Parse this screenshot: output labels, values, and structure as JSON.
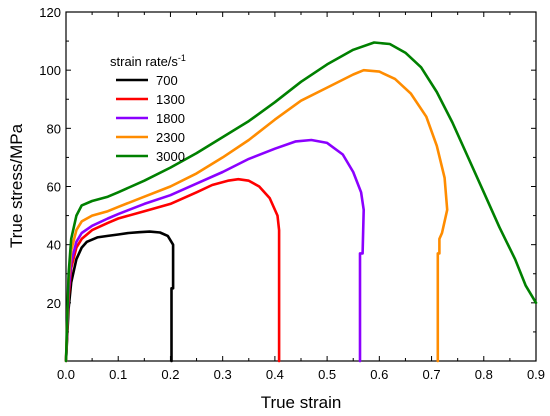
{
  "chart_data": {
    "type": "line",
    "xlabel": "True strain",
    "ylabel": "True stress/MPa",
    "xlim": [
      0.0,
      0.9
    ],
    "ylim": [
      0,
      120
    ],
    "xticks": [
      0.0,
      0.1,
      0.2,
      0.3,
      0.4,
      0.5,
      0.6,
      0.7,
      0.8,
      0.9
    ],
    "xtick_labels": [
      "0.0",
      "0.1",
      "0.2",
      "0.3",
      "0.4",
      "0.5",
      "0.6",
      "0.7",
      "0.8",
      "0.9"
    ],
    "yticks": [
      20,
      40,
      60,
      80,
      100,
      120
    ],
    "ytick_labels": [
      "20",
      "40",
      "60",
      "80",
      "100",
      "120"
    ],
    "grid": false,
    "legend": {
      "title": "strain rate/s",
      "title_superscript": "-1",
      "placement": "top-left"
    },
    "series": [
      {
        "name": "700",
        "color": "#000000",
        "points": [
          [
            0.0,
            0
          ],
          [
            0.005,
            18
          ],
          [
            0.01,
            27
          ],
          [
            0.02,
            35
          ],
          [
            0.03,
            39
          ],
          [
            0.04,
            41
          ],
          [
            0.06,
            42.5
          ],
          [
            0.08,
            43
          ],
          [
            0.1,
            43.5
          ],
          [
            0.12,
            44
          ],
          [
            0.14,
            44.3
          ],
          [
            0.16,
            44.5
          ],
          [
            0.18,
            44.2
          ],
          [
            0.195,
            43
          ],
          [
            0.205,
            40
          ],
          [
            0.205,
            25
          ],
          [
            0.202,
            25
          ],
          [
            0.202,
            0
          ]
        ]
      },
      {
        "name": "1300",
        "color": "#ff0000",
        "points": [
          [
            0.0,
            0
          ],
          [
            0.005,
            22
          ],
          [
            0.01,
            32
          ],
          [
            0.02,
            39
          ],
          [
            0.03,
            42
          ],
          [
            0.05,
            45
          ],
          [
            0.08,
            47.5
          ],
          [
            0.1,
            49
          ],
          [
            0.15,
            51.5
          ],
          [
            0.2,
            54
          ],
          [
            0.25,
            58
          ],
          [
            0.28,
            60.5
          ],
          [
            0.31,
            62
          ],
          [
            0.33,
            62.5
          ],
          [
            0.35,
            62
          ],
          [
            0.37,
            60
          ],
          [
            0.39,
            56
          ],
          [
            0.405,
            50
          ],
          [
            0.408,
            45
          ],
          [
            0.408,
            0
          ]
        ]
      },
      {
        "name": "1800",
        "color": "#8b00ff",
        "points": [
          [
            0.0,
            0
          ],
          [
            0.005,
            24
          ],
          [
            0.01,
            34
          ],
          [
            0.02,
            41
          ],
          [
            0.03,
            44
          ],
          [
            0.05,
            46.5
          ],
          [
            0.08,
            49
          ],
          [
            0.1,
            50.5
          ],
          [
            0.15,
            54
          ],
          [
            0.2,
            57
          ],
          [
            0.25,
            61
          ],
          [
            0.3,
            65
          ],
          [
            0.35,
            69.5
          ],
          [
            0.4,
            73
          ],
          [
            0.44,
            75.5
          ],
          [
            0.47,
            76
          ],
          [
            0.5,
            75
          ],
          [
            0.53,
            71
          ],
          [
            0.55,
            65
          ],
          [
            0.565,
            58
          ],
          [
            0.57,
            52
          ],
          [
            0.568,
            37
          ],
          [
            0.563,
            37
          ],
          [
            0.563,
            0
          ]
        ]
      },
      {
        "name": "2300",
        "color": "#ff8c00",
        "points": [
          [
            0.0,
            0
          ],
          [
            0.005,
            28
          ],
          [
            0.01,
            38
          ],
          [
            0.02,
            45
          ],
          [
            0.03,
            48
          ],
          [
            0.05,
            50
          ],
          [
            0.08,
            51.5
          ],
          [
            0.1,
            53
          ],
          [
            0.15,
            56.5
          ],
          [
            0.2,
            60
          ],
          [
            0.25,
            64.5
          ],
          [
            0.3,
            70
          ],
          [
            0.35,
            76
          ],
          [
            0.4,
            83
          ],
          [
            0.45,
            89.5
          ],
          [
            0.5,
            94
          ],
          [
            0.55,
            98.5
          ],
          [
            0.57,
            100
          ],
          [
            0.6,
            99.5
          ],
          [
            0.63,
            97
          ],
          [
            0.66,
            92
          ],
          [
            0.69,
            84
          ],
          [
            0.71,
            74
          ],
          [
            0.725,
            63
          ],
          [
            0.73,
            52
          ],
          [
            0.72,
            44
          ],
          [
            0.715,
            42
          ],
          [
            0.715,
            37
          ],
          [
            0.712,
            37
          ],
          [
            0.712,
            0
          ]
        ]
      },
      {
        "name": "3000",
        "color": "#008000",
        "points": [
          [
            0.0,
            0
          ],
          [
            0.005,
            30
          ],
          [
            0.01,
            42
          ],
          [
            0.02,
            50
          ],
          [
            0.03,
            53.5
          ],
          [
            0.05,
            55
          ],
          [
            0.08,
            56.5
          ],
          [
            0.1,
            58
          ],
          [
            0.15,
            62
          ],
          [
            0.2,
            66.5
          ],
          [
            0.25,
            71.5
          ],
          [
            0.3,
            77
          ],
          [
            0.35,
            82.5
          ],
          [
            0.4,
            89
          ],
          [
            0.45,
            96
          ],
          [
            0.5,
            102
          ],
          [
            0.55,
            107
          ],
          [
            0.59,
            109.5
          ],
          [
            0.62,
            109
          ],
          [
            0.65,
            106
          ],
          [
            0.68,
            101
          ],
          [
            0.71,
            92.5
          ],
          [
            0.74,
            82
          ],
          [
            0.77,
            70
          ],
          [
            0.8,
            58
          ],
          [
            0.83,
            46
          ],
          [
            0.86,
            35
          ],
          [
            0.88,
            26
          ],
          [
            0.9,
            20
          ]
        ]
      }
    ]
  }
}
